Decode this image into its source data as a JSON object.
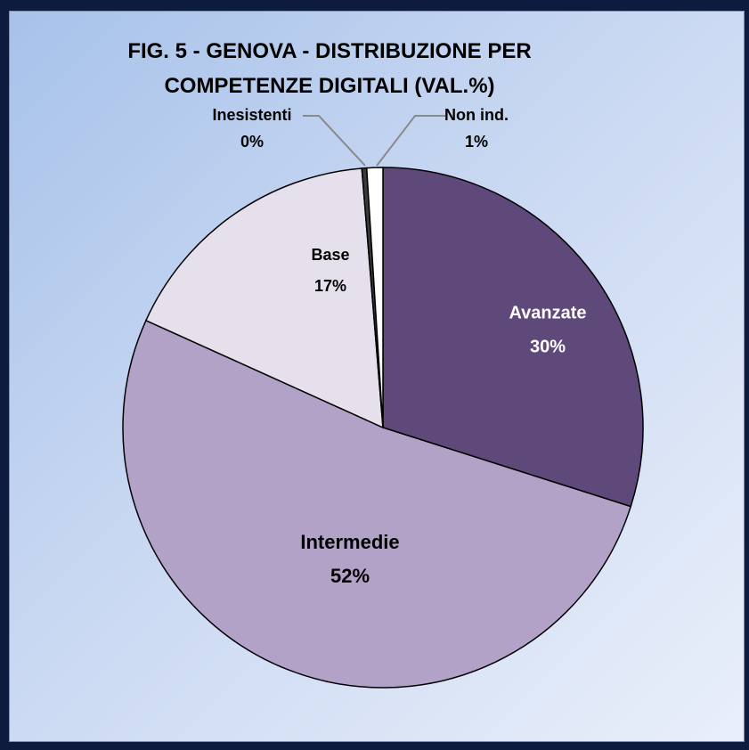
{
  "chart_data": {
    "type": "pie",
    "title": "FIG. 5 - GENOVA  - DISTRIBUZIONE PER COMPETENZE DIGITALI (VAL.%)",
    "categories": [
      "Avanzate",
      "Intermedie",
      "Base",
      "Inesistenti",
      "Non ind."
    ],
    "values": [
      30,
      52,
      17,
      0.3,
      1
    ],
    "value_labels": [
      "30%",
      "52%",
      "17%",
      "0%",
      "1%"
    ],
    "colors": [
      "#5f497a",
      "#b3a2c7",
      "#e6e0ec",
      "#3a3a3a",
      "#ffffff"
    ]
  }
}
